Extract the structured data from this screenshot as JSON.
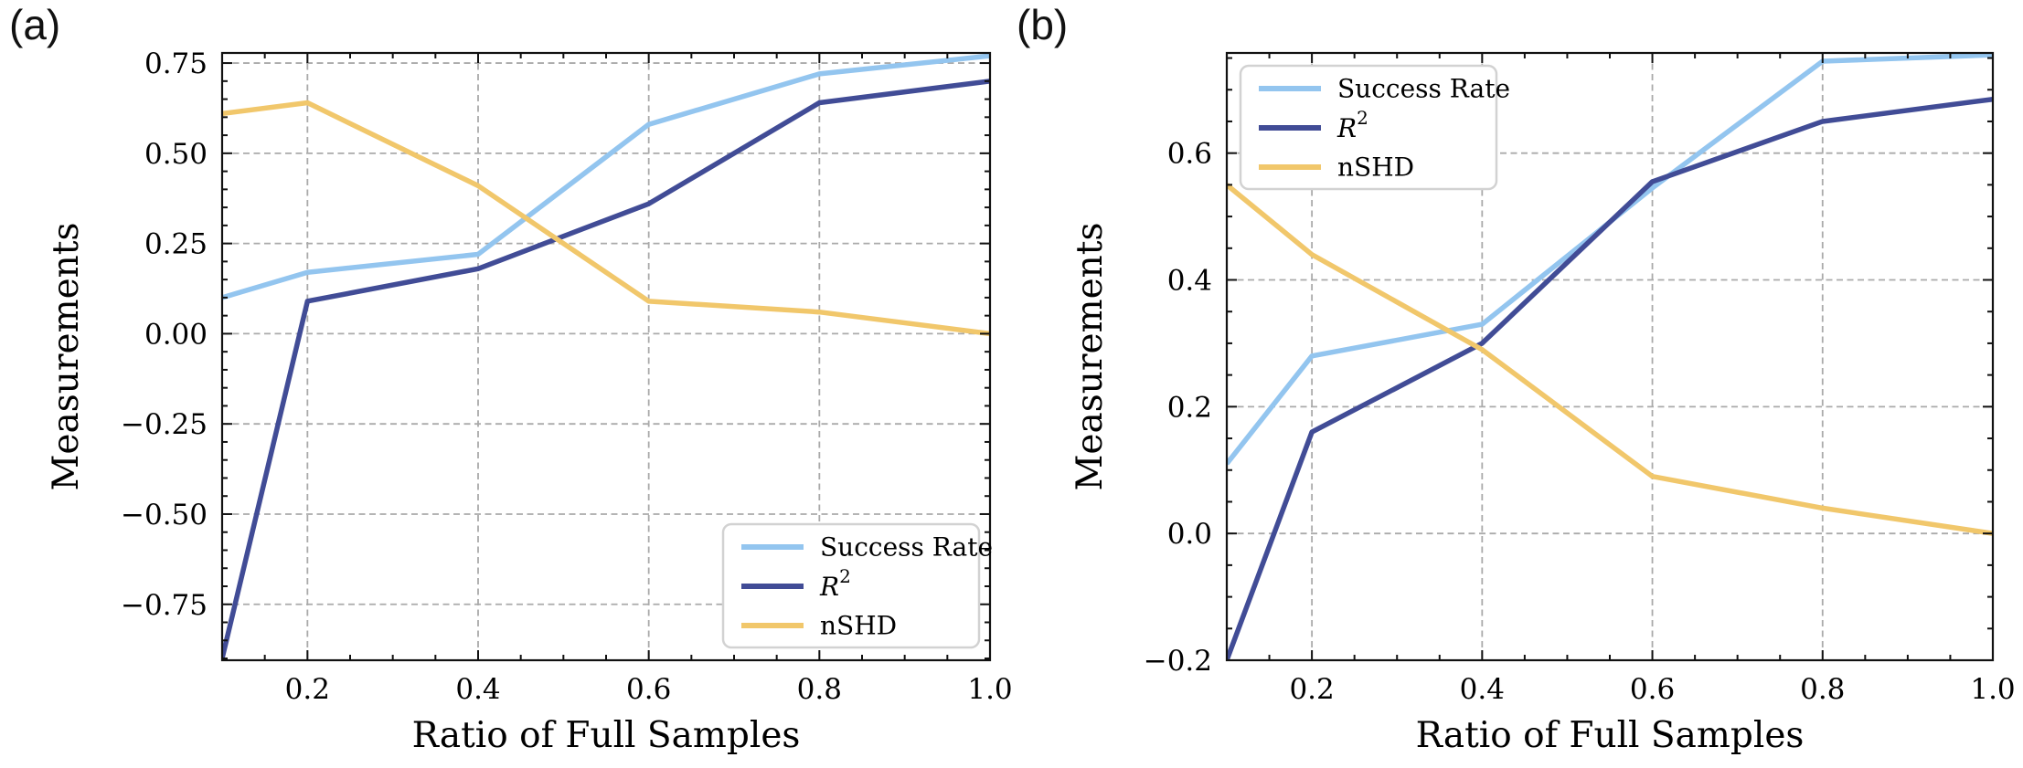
{
  "styles": {
    "background": "#ffffff",
    "grid_color": "#aaaaaa",
    "axis_color": "#111111",
    "text_color": "#000000",
    "legend_border": "#d2d2d2",
    "success_rate_color": "#93c5ef",
    "r2_color": "#414c96",
    "nshd_color": "#f1c76b"
  },
  "chart_data": [
    {
      "type": "line",
      "panel_label": "(a)",
      "title": "",
      "xlabel": "Ratio of Full Samples",
      "ylabel": "Measurements",
      "x": [
        0.1,
        0.2,
        0.4,
        0.6,
        0.8,
        1.0
      ],
      "series": [
        {
          "name": "Success Rate",
          "color": "#93c5ef",
          "italic": false,
          "values": [
            0.1,
            0.17,
            0.22,
            0.58,
            0.72,
            0.77
          ]
        },
        {
          "name": "R²",
          "color": "#414c96",
          "italic": true,
          "values": [
            -0.9,
            0.09,
            0.18,
            0.36,
            0.64,
            0.7
          ]
        },
        {
          "name": "nSHD",
          "color": "#f1c76b",
          "italic": false,
          "values": [
            0.61,
            0.64,
            0.41,
            0.09,
            0.06,
            0.0
          ]
        }
      ],
      "xlim": [
        0.1,
        1.0
      ],
      "ylim": [
        -0.905,
        0.778
      ],
      "xticks": [
        0.2,
        0.4,
        0.6,
        0.8,
        1.0
      ],
      "xtick_labels": [
        "0.2",
        "0.4",
        "0.6",
        "0.8",
        "1.0"
      ],
      "yticks": [
        -0.75,
        -0.5,
        -0.25,
        0,
        0.25,
        0.5,
        0.75
      ],
      "ytick_labels": [
        "−0.75",
        "−0.50",
        "−0.25",
        "0.00",
        "0.25",
        "0.50",
        "0.75"
      ],
      "minor_tick_step": 0.05,
      "grid": "dashed",
      "legend": {
        "position": "lower right",
        "items": [
          "Success Rate",
          "R²",
          "nSHD"
        ]
      }
    },
    {
      "type": "line",
      "panel_label": "(b)",
      "title": "",
      "xlabel": "Ratio of Full Samples",
      "ylabel": "Measurements",
      "x": [
        0.1,
        0.2,
        0.4,
        0.6,
        0.8,
        1.0
      ],
      "series": [
        {
          "name": "Success Rate",
          "color": "#93c5ef",
          "italic": false,
          "values": [
            0.11,
            0.28,
            0.33,
            0.545,
            0.745,
            0.755
          ]
        },
        {
          "name": "R²",
          "color": "#414c96",
          "italic": true,
          "values": [
            -0.2,
            0.16,
            0.3,
            0.555,
            0.65,
            0.685
          ]
        },
        {
          "name": "nSHD",
          "color": "#f1c76b",
          "italic": false,
          "values": [
            0.55,
            0.44,
            0.29,
            0.09,
            0.04,
            0.0
          ]
        }
      ],
      "xlim": [
        0.1,
        1.0
      ],
      "ylim": [
        -0.2,
        0.758
      ],
      "xticks": [
        0.2,
        0.4,
        0.6,
        0.8,
        1.0
      ],
      "xtick_labels": [
        "0.2",
        "0.4",
        "0.6",
        "0.8",
        "1.0"
      ],
      "yticks": [
        -0.2,
        0,
        0.2,
        0.4,
        0.6
      ],
      "ytick_labels": [
        "−0.2",
        "0.0",
        "0.2",
        "0.4",
        "0.6"
      ],
      "minor_tick_step": 0.05,
      "grid": "dashed",
      "legend": {
        "position": "upper left",
        "items": [
          "Success Rate",
          "R²",
          "nSHD"
        ]
      }
    }
  ]
}
